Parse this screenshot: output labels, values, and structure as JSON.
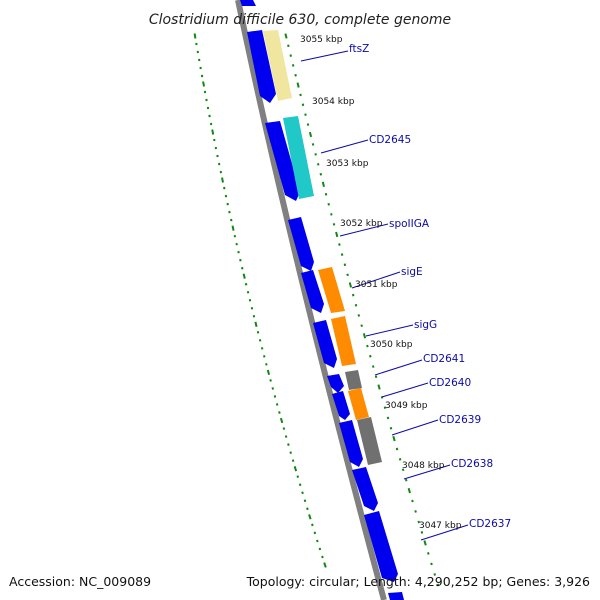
{
  "title": "Clostridium difficile 630, complete genome",
  "footer": {
    "accession": "Accession: NC_009089",
    "summary": "Topology: circular; Length: 4,290,252 bp; Genes: 3,926"
  },
  "colors": {
    "forward_gene": "#0000ee",
    "backbone": "#808080",
    "tick_green": "#118811",
    "label_blue": "#0a0aa8",
    "ftsZ": "#f0e6a0",
    "CD2645": "#20c8c8",
    "sigE": "#ff8c00",
    "sigG": "#ff8c00",
    "CD2641": "#707070",
    "CD2640": "#ff8c00",
    "CD2639": "#707070"
  },
  "kbp_labels": [
    "3055 kbp",
    "3054 kbp",
    "3053 kbp",
    "3052 kbp",
    "3051 kbp",
    "3050 kbp",
    "3049 kbp",
    "3048 kbp",
    "3047 kbp"
  ],
  "gene_labels": [
    "ftsZ",
    "CD2645",
    "spoIIGA",
    "sigE",
    "sigG",
    "CD2641",
    "CD2640",
    "CD2639",
    "CD2638",
    "CD2637"
  ]
}
